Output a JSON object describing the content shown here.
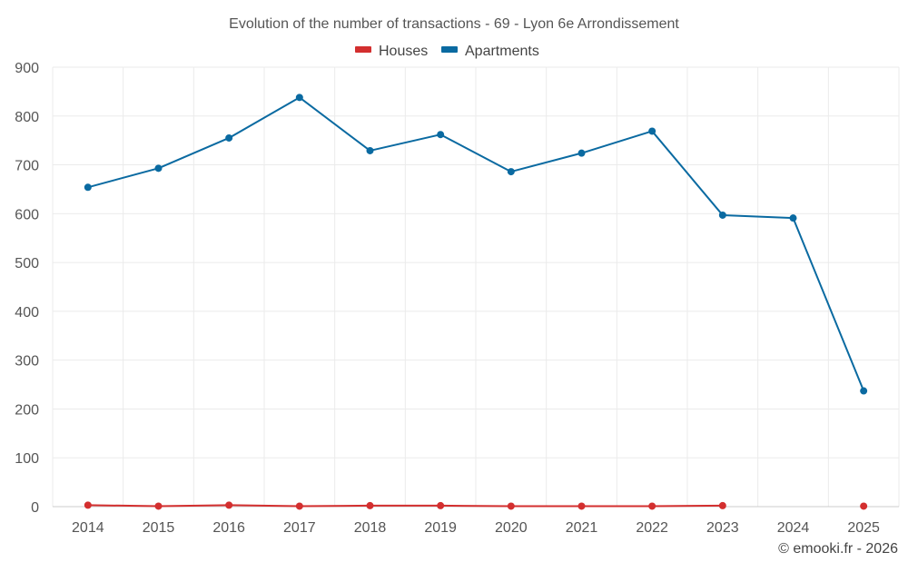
{
  "chart_data": {
    "type": "line",
    "title": "Evolution of the number of transactions - 69 - Lyon 6e Arrondissement",
    "categories": [
      "2014",
      "2015",
      "2016",
      "2017",
      "2018",
      "2019",
      "2020",
      "2021",
      "2022",
      "2023",
      "2024",
      "2025"
    ],
    "series": [
      {
        "name": "Houses",
        "color": "#d32f2f",
        "values": [
          3,
          1,
          3,
          1,
          2,
          2,
          1,
          1,
          1,
          2,
          null,
          1
        ]
      },
      {
        "name": "Apartments",
        "color": "#0a6aa1",
        "values": [
          654,
          693,
          755,
          838,
          729,
          762,
          686,
          724,
          769,
          597,
          591,
          237
        ]
      }
    ],
    "ylim": [
      0,
      900
    ],
    "yticks": [
      0,
      100,
      200,
      300,
      400,
      500,
      600,
      700,
      800,
      900
    ],
    "xlabel": "",
    "ylabel": "",
    "grid": true,
    "legend_position": "top-center"
  },
  "credit": "© emooki.fr - 2026"
}
